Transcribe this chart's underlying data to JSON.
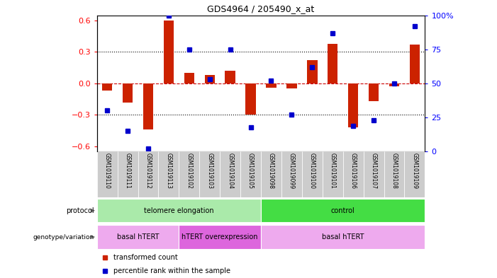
{
  "title": "GDS4964 / 205490_x_at",
  "samples": [
    "GSM1019110",
    "GSM1019111",
    "GSM1019112",
    "GSM1019113",
    "GSM1019102",
    "GSM1019103",
    "GSM1019104",
    "GSM1019105",
    "GSM1019098",
    "GSM1019099",
    "GSM1019100",
    "GSM1019101",
    "GSM1019106",
    "GSM1019107",
    "GSM1019108",
    "GSM1019109"
  ],
  "bar_values": [
    -0.07,
    -0.18,
    -0.44,
    0.6,
    0.1,
    0.08,
    0.12,
    -0.3,
    -0.04,
    -0.05,
    0.22,
    0.38,
    -0.42,
    -0.17,
    -0.03,
    0.37
  ],
  "dot_values": [
    30,
    15,
    2,
    100,
    75,
    53,
    75,
    18,
    52,
    27,
    62,
    87,
    19,
    23,
    50,
    92
  ],
  "ylim_left": [
    -0.65,
    0.65
  ],
  "ylim_right": [
    0,
    100
  ],
  "yticks_left": [
    -0.6,
    -0.3,
    0,
    0.3,
    0.6
  ],
  "yticks_right": [
    0,
    25,
    50,
    75,
    100
  ],
  "bar_color": "#cc2200",
  "dot_color": "#0000cc",
  "hline_zero_color": "#cc0000",
  "grid_dotted_values": [
    -0.3,
    0.3
  ],
  "protocol_labels": [
    {
      "text": "telomere elongation",
      "start": 0,
      "end": 7,
      "color": "#aaeaaa"
    },
    {
      "text": "control",
      "start": 8,
      "end": 15,
      "color": "#44dd44"
    }
  ],
  "genotype_labels": [
    {
      "text": "basal hTERT",
      "start": 0,
      "end": 3,
      "color": "#eeaaee"
    },
    {
      "text": "hTERT overexpression",
      "start": 4,
      "end": 7,
      "color": "#dd66dd"
    },
    {
      "text": "basal hTERT",
      "start": 8,
      "end": 15,
      "color": "#eeaaee"
    }
  ],
  "legend_items": [
    {
      "label": "transformed count",
      "color": "#cc2200",
      "marker": "s"
    },
    {
      "label": "percentile rank within the sample",
      "color": "#0000cc",
      "marker": "s"
    }
  ],
  "bg_color": "#ffffff",
  "tick_bg": "#cccccc",
  "bar_width": 0.5,
  "protocol_label_text": "protocol",
  "genotype_label_text": "genotype/variation"
}
